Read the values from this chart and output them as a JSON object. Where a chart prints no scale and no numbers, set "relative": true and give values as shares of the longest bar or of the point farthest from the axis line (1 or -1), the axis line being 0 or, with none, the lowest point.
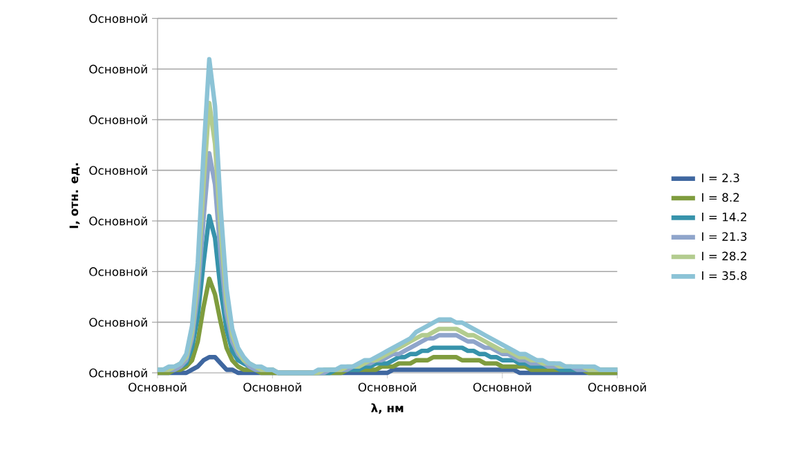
{
  "chart_data": {
    "type": "line",
    "xlabel": "λ, нм",
    "ylabel": "I, отн. ед.",
    "relative": true,
    "categories": [
      "Основной",
      null,
      null,
      null,
      null,
      null,
      null,
      null,
      null,
      null,
      null,
      null,
      null,
      null,
      null,
      null,
      null,
      null,
      null,
      null,
      "Основной",
      null,
      null,
      null,
      null,
      null,
      null,
      null,
      null,
      null,
      null,
      null,
      null,
      null,
      null,
      null,
      null,
      null,
      null,
      null,
      "Основной",
      null,
      null,
      null,
      null,
      null,
      null,
      null,
      null,
      null,
      null,
      null,
      null,
      null,
      null,
      null,
      null,
      null,
      null,
      null,
      "Основной",
      null,
      null,
      null,
      null,
      null,
      null,
      null,
      null,
      null,
      null,
      null,
      null,
      null,
      null,
      null,
      null,
      null,
      null,
      null,
      "Основной"
    ],
    "annotations": [
      "Основной",
      "Основной",
      "Основной",
      "Основной",
      "Основной",
      "Основной",
      "Основной",
      "Основной"
    ],
    "grid": "y",
    "legend": "right",
    "marker": "none",
    "line_style": "solid",
    "series": [
      {
        "name": "I = 2.3",
        "color": "#3f67a0",
        "values": [
          0,
          0,
          0,
          0,
          0,
          0,
          0.01,
          0.02,
          0.04,
          0.05,
          0.05,
          0.03,
          0.01,
          0.01,
          0,
          0,
          0,
          0,
          0,
          0,
          0,
          0,
          0,
          0,
          0,
          0,
          0,
          0,
          0,
          0,
          0,
          0,
          0,
          0,
          0,
          0,
          0,
          0,
          0,
          0,
          0,
          0.01,
          0.01,
          0.01,
          0.01,
          0.01,
          0.01,
          0.01,
          0.01,
          0.01,
          0.01,
          0.01,
          0.01,
          0.01,
          0.01,
          0.01,
          0.01,
          0.01,
          0.01,
          0.01,
          0.01,
          0.01,
          0.01,
          0,
          0,
          0,
          0,
          0,
          0,
          0,
          0,
          0,
          0,
          0,
          0,
          0,
          0,
          0,
          0,
          0,
          0
        ]
      },
      {
        "name": "I = 8.2",
        "color": "#7f9c3e",
        "values": [
          0,
          0,
          0,
          0.01,
          0.01,
          0.02,
          0.04,
          0.1,
          0.21,
          0.3,
          0.25,
          0.16,
          0.08,
          0.04,
          0.02,
          0.01,
          0.01,
          0.01,
          0,
          0,
          0,
          0,
          0,
          0,
          0,
          0,
          0,
          0,
          0,
          0,
          0,
          0,
          0,
          0.01,
          0.01,
          0.01,
          0.01,
          0.01,
          0.01,
          0.02,
          0.02,
          0.02,
          0.03,
          0.03,
          0.03,
          0.04,
          0.04,
          0.04,
          0.05,
          0.05,
          0.05,
          0.05,
          0.05,
          0.04,
          0.04,
          0.04,
          0.04,
          0.03,
          0.03,
          0.03,
          0.02,
          0.02,
          0.02,
          0.02,
          0.02,
          0.01,
          0.01,
          0.01,
          0.01,
          0.01,
          0.01,
          0.01,
          0.01,
          0.01,
          0.01,
          0,
          0,
          0,
          0,
          0,
          0
        ]
      },
      {
        "name": "I = 14.2",
        "color": "#3793ab",
        "values": [
          0.01,
          0.01,
          0.01,
          0.01,
          0.02,
          0.03,
          0.08,
          0.18,
          0.35,
          0.5,
          0.43,
          0.26,
          0.14,
          0.07,
          0.04,
          0.03,
          0.02,
          0.01,
          0.01,
          0.01,
          0.01,
          0,
          0,
          0,
          0,
          0,
          0,
          0,
          0,
          0,
          0,
          0.01,
          0.01,
          0.01,
          0.01,
          0.01,
          0.02,
          0.02,
          0.03,
          0.03,
          0.03,
          0.04,
          0.05,
          0.05,
          0.06,
          0.06,
          0.07,
          0.07,
          0.08,
          0.08,
          0.08,
          0.08,
          0.08,
          0.08,
          0.07,
          0.07,
          0.06,
          0.06,
          0.05,
          0.05,
          0.04,
          0.04,
          0.04,
          0.03,
          0.03,
          0.02,
          0.02,
          0.02,
          0.02,
          0.02,
          0.01,
          0.01,
          0.01,
          0.01,
          0.01,
          0.01,
          0.01,
          0.01,
          0.01,
          0.01,
          0.01
        ]
      },
      {
        "name": "I = 21.3",
        "color": "#8fa5cb",
        "values": [
          0.01,
          0.01,
          0.01,
          0.01,
          0.02,
          0.04,
          0.11,
          0.25,
          0.49,
          0.7,
          0.6,
          0.37,
          0.19,
          0.1,
          0.06,
          0.04,
          0.02,
          0.01,
          0.01,
          0.01,
          0.01,
          0,
          0,
          0,
          0,
          0,
          0,
          0,
          0,
          0,
          0.01,
          0.01,
          0.01,
          0.01,
          0.02,
          0.02,
          0.03,
          0.03,
          0.04,
          0.04,
          0.05,
          0.06,
          0.06,
          0.07,
          0.08,
          0.09,
          0.1,
          0.11,
          0.11,
          0.12,
          0.12,
          0.12,
          0.12,
          0.11,
          0.1,
          0.1,
          0.09,
          0.08,
          0.08,
          0.07,
          0.06,
          0.06,
          0.05,
          0.04,
          0.04,
          0.03,
          0.03,
          0.03,
          0.02,
          0.02,
          0.02,
          0.02,
          0.02,
          0.01,
          0.01,
          0.01,
          0.01,
          0.01,
          0.01,
          0.01,
          0.01
        ]
      },
      {
        "name": "I = 28.2",
        "color": "#b3cc8f",
        "values": [
          0.01,
          0.01,
          0.01,
          0.02,
          0.03,
          0.05,
          0.13,
          0.3,
          0.6,
          0.86,
          0.73,
          0.45,
          0.23,
          0.12,
          0.07,
          0.04,
          0.03,
          0.02,
          0.01,
          0.01,
          0.01,
          0,
          0,
          0,
          0,
          0,
          0,
          0,
          0,
          0.01,
          0.01,
          0.01,
          0.01,
          0.02,
          0.02,
          0.02,
          0.03,
          0.04,
          0.04,
          0.05,
          0.06,
          0.07,
          0.08,
          0.09,
          0.1,
          0.11,
          0.12,
          0.12,
          0.13,
          0.14,
          0.14,
          0.14,
          0.14,
          0.13,
          0.12,
          0.12,
          0.11,
          0.1,
          0.09,
          0.08,
          0.07,
          0.07,
          0.06,
          0.05,
          0.05,
          0.04,
          0.04,
          0.03,
          0.03,
          0.03,
          0.02,
          0.02,
          0.02,
          0.02,
          0.02,
          0.01,
          0.01,
          0.01,
          0.01,
          0.01,
          0.01
        ]
      },
      {
        "name": "I = 35.8",
        "color": "#8cc3d6",
        "values": [
          0.01,
          0.01,
          0.02,
          0.02,
          0.03,
          0.06,
          0.15,
          0.35,
          0.7,
          1,
          0.85,
          0.52,
          0.27,
          0.14,
          0.08,
          0.05,
          0.03,
          0.02,
          0.02,
          0.01,
          0.01,
          0,
          0,
          0,
          0,
          0,
          0,
          0,
          0.01,
          0.01,
          0.01,
          0.01,
          0.02,
          0.02,
          0.02,
          0.03,
          0.04,
          0.04,
          0.05,
          0.06,
          0.07,
          0.08,
          0.09,
          0.1,
          0.11,
          0.13,
          0.14,
          0.15,
          0.16,
          0.17,
          0.17,
          0.17,
          0.16,
          0.16,
          0.15,
          0.14,
          0.13,
          0.12,
          0.11,
          0.1,
          0.09,
          0.08,
          0.07,
          0.06,
          0.06,
          0.05,
          0.04,
          0.04,
          0.03,
          0.03,
          0.03,
          0.02,
          0.02,
          0.02,
          0.02,
          0.02,
          0.02,
          0.01,
          0.01,
          0.01,
          0.01
        ]
      }
    ]
  }
}
